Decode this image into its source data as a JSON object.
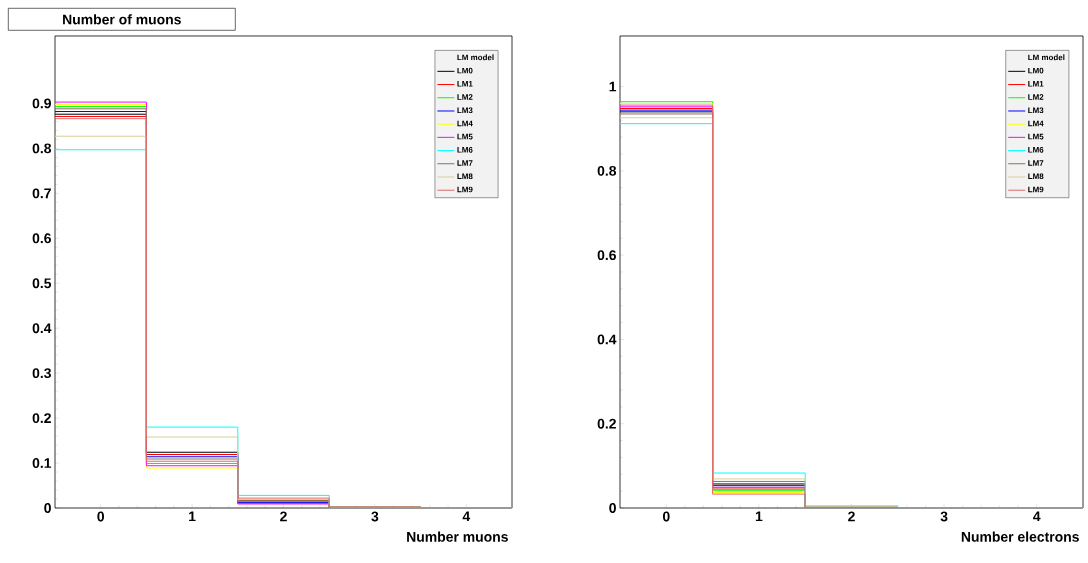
{
  "chart_data": [
    {
      "type": "histogram",
      "title": "Number of muons",
      "xlabel": "Number muons",
      "legend_title": "LM model",
      "legend": "top right",
      "bins": [
        -0.5,
        0.5,
        1.5,
        2.5,
        3.5,
        4.5
      ],
      "xlim": [
        -0.5,
        4.5
      ],
      "xticks": [
        0,
        1,
        2,
        3,
        4
      ],
      "ylim": [
        0,
        1.05
      ],
      "yticks": [
        0,
        0.1,
        0.2,
        0.3,
        0.4,
        0.5,
        0.6,
        0.7,
        0.8,
        0.9
      ],
      "series": [
        {
          "name": "LM0",
          "color": "#000000",
          "values": [
            0.876,
            0.124,
            0.016,
            0.002,
            0
          ]
        },
        {
          "name": "LM1",
          "color": "#ff0000",
          "values": [
            0.871,
            0.119,
            0.015,
            0.002,
            0
          ]
        },
        {
          "name": "LM2",
          "color": "#00ff00",
          "values": [
            0.893,
            0.099,
            0.01,
            0.001,
            0
          ]
        },
        {
          "name": "LM3",
          "color": "#0000ff",
          "values": [
            0.882,
            0.114,
            0.012,
            0.001,
            0
          ]
        },
        {
          "name": "LM4",
          "color": "#ffff00",
          "values": [
            0.898,
            0.089,
            0.015,
            0.002,
            0
          ]
        },
        {
          "name": "LM5",
          "color": "#ff00ff",
          "values": [
            0.903,
            0.094,
            0.009,
            0.001,
            0
          ]
        },
        {
          "name": "LM6",
          "color": "#00ffff",
          "values": [
            0.797,
            0.18,
            0.028,
            0.002,
            0
          ]
        },
        {
          "name": "LM7",
          "color": "#8b6f5e",
          "values": [
            0.888,
            0.109,
            0.015,
            0.002,
            0
          ]
        },
        {
          "name": "LM8",
          "color": "#d8cf9a",
          "values": [
            0.827,
            0.158,
            0.019,
            0.002,
            0
          ]
        },
        {
          "name": "LM9",
          "color": "#e06666",
          "values": [
            0.866,
            0.104,
            0.022,
            0.002,
            0
          ]
        }
      ]
    },
    {
      "type": "histogram",
      "xlabel": "Number electrons",
      "legend_title": "LM model",
      "legend": "top right",
      "bins": [
        -0.5,
        0.5,
        1.5,
        2.5,
        3.5,
        4.5
      ],
      "xlim": [
        -0.5,
        4.5
      ],
      "xticks": [
        0,
        1,
        2,
        3,
        4
      ],
      "ylim": [
        0,
        1.12
      ],
      "yticks": [
        0,
        0.2,
        0.4,
        0.6,
        0.8,
        1
      ],
      "series": [
        {
          "name": "LM0",
          "color": "#000000",
          "values": [
            0.94,
            0.057,
            0.002,
            0,
            0
          ]
        },
        {
          "name": "LM1",
          "color": "#ff0000",
          "values": [
            0.948,
            0.045,
            0.002,
            0,
            0
          ]
        },
        {
          "name": "LM2",
          "color": "#00ff00",
          "values": [
            0.964,
            0.041,
            0.002,
            0,
            0
          ]
        },
        {
          "name": "LM3",
          "color": "#0000ff",
          "values": [
            0.944,
            0.053,
            0.002,
            0,
            0
          ]
        },
        {
          "name": "LM4",
          "color": "#ffff00",
          "values": [
            0.96,
            0.037,
            0.002,
            0,
            0
          ]
        },
        {
          "name": "LM5",
          "color": "#ff00ff",
          "values": [
            0.952,
            0.049,
            0.002,
            0,
            0
          ]
        },
        {
          "name": "LM6",
          "color": "#00ffff",
          "values": [
            0.912,
            0.083,
            0.005,
            0,
            0
          ]
        },
        {
          "name": "LM7",
          "color": "#8b6f5e",
          "values": [
            0.935,
            0.063,
            0.002,
            0,
            0
          ]
        },
        {
          "name": "LM8",
          "color": "#d8cf9a",
          "values": [
            0.926,
            0.069,
            0.003,
            0,
            0
          ]
        },
        {
          "name": "LM9",
          "color": "#e06666",
          "values": [
            0.956,
            0.033,
            0.001,
            0,
            0
          ]
        }
      ]
    }
  ]
}
